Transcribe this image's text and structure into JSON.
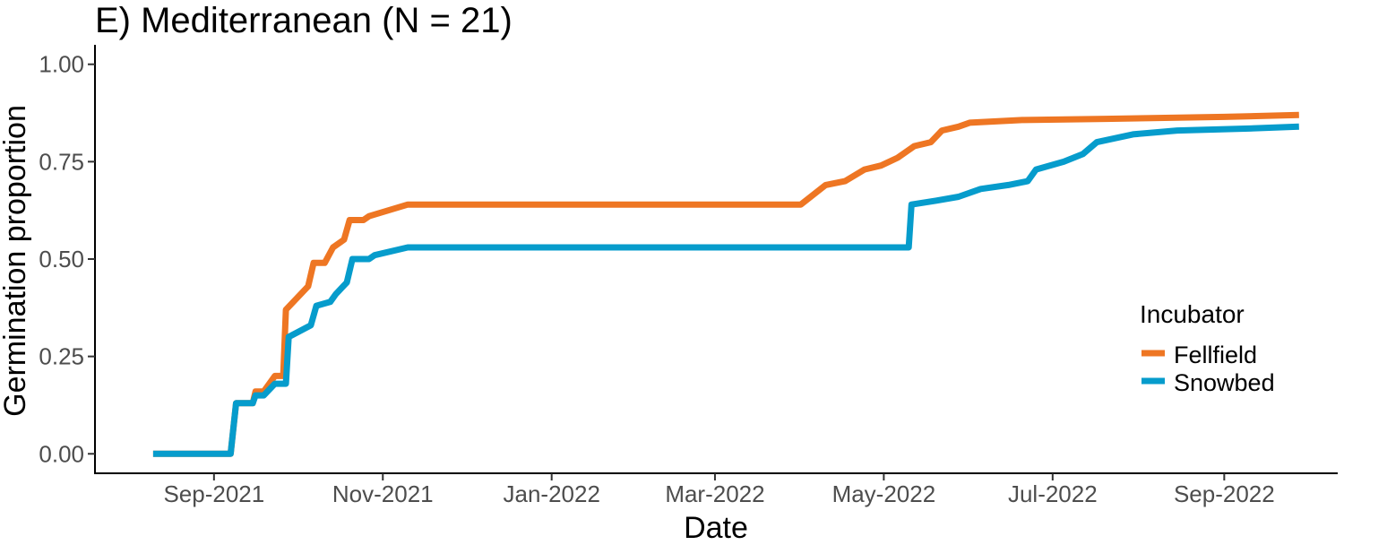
{
  "chart_data": {
    "type": "line",
    "title": "E) Mediterranean (N = 21)",
    "xlabel": "Date",
    "ylabel": "Germination proportion",
    "xlim": [
      "2021-07-20",
      "2022-10-12"
    ],
    "ylim": [
      -0.05,
      1.05
    ],
    "x_ticks": [
      {
        "date": "2021-09-01",
        "label": "Sep-2021"
      },
      {
        "date": "2021-11-01",
        "label": "Nov-2021"
      },
      {
        "date": "2022-01-01",
        "label": "Jan-2022"
      },
      {
        "date": "2022-03-01",
        "label": "Mar-2022"
      },
      {
        "date": "2022-05-01",
        "label": "May-2022"
      },
      {
        "date": "2022-07-01",
        "label": "Jul-2022"
      },
      {
        "date": "2022-09-01",
        "label": "Sep-2022"
      }
    ],
    "y_ticks": [
      {
        "value": 0,
        "label": "0.00"
      },
      {
        "value": 0.25,
        "label": "0.25"
      },
      {
        "value": 0.5,
        "label": "0.50"
      },
      {
        "value": 0.75,
        "label": "0.75"
      },
      {
        "value": 1,
        "label": "1.00"
      }
    ],
    "grid": false,
    "legend": {
      "title": "Incubator",
      "position": "right"
    },
    "series": [
      {
        "name": "Fellfield",
        "color": "#ee7623",
        "points": [
          [
            "2021-08-10",
            0.0
          ],
          [
            "2021-09-07",
            0.0
          ],
          [
            "2021-09-09",
            0.13
          ],
          [
            "2021-09-15",
            0.13
          ],
          [
            "2021-09-16",
            0.16
          ],
          [
            "2021-09-19",
            0.16
          ],
          [
            "2021-09-23",
            0.2
          ],
          [
            "2021-09-26",
            0.2
          ],
          [
            "2021-09-27",
            0.37
          ],
          [
            "2021-10-05",
            0.43
          ],
          [
            "2021-10-07",
            0.49
          ],
          [
            "2021-10-11",
            0.49
          ],
          [
            "2021-10-14",
            0.53
          ],
          [
            "2021-10-18",
            0.55
          ],
          [
            "2021-10-20",
            0.6
          ],
          [
            "2021-10-25",
            0.6
          ],
          [
            "2021-10-27",
            0.61
          ],
          [
            "2021-11-10",
            0.64
          ],
          [
            "2022-04-01",
            0.64
          ],
          [
            "2022-04-10",
            0.69
          ],
          [
            "2022-04-17",
            0.7
          ],
          [
            "2022-04-24",
            0.73
          ],
          [
            "2022-04-30",
            0.74
          ],
          [
            "2022-05-06",
            0.76
          ],
          [
            "2022-05-12",
            0.79
          ],
          [
            "2022-05-18",
            0.8
          ],
          [
            "2022-05-22",
            0.83
          ],
          [
            "2022-05-28",
            0.84
          ],
          [
            "2022-06-01",
            0.85
          ],
          [
            "2022-06-20",
            0.857
          ],
          [
            "2022-07-20",
            0.86
          ],
          [
            "2022-09-01",
            0.865
          ],
          [
            "2022-09-28",
            0.87
          ]
        ]
      },
      {
        "name": "Snowbed",
        "color": "#069ccc",
        "points": [
          [
            "2021-08-10",
            0.0
          ],
          [
            "2021-09-07",
            0.0
          ],
          [
            "2021-09-09",
            0.13
          ],
          [
            "2021-09-15",
            0.13
          ],
          [
            "2021-09-16",
            0.15
          ],
          [
            "2021-09-19",
            0.15
          ],
          [
            "2021-09-23",
            0.18
          ],
          [
            "2021-09-27",
            0.18
          ],
          [
            "2021-09-28",
            0.3
          ],
          [
            "2021-10-06",
            0.33
          ],
          [
            "2021-10-08",
            0.38
          ],
          [
            "2021-10-13",
            0.39
          ],
          [
            "2021-10-15",
            0.41
          ],
          [
            "2021-10-19",
            0.44
          ],
          [
            "2021-10-21",
            0.5
          ],
          [
            "2021-10-27",
            0.5
          ],
          [
            "2021-10-29",
            0.51
          ],
          [
            "2021-11-10",
            0.53
          ],
          [
            "2022-05-10",
            0.53
          ],
          [
            "2022-05-11",
            0.64
          ],
          [
            "2022-05-20",
            0.65
          ],
          [
            "2022-05-28",
            0.66
          ],
          [
            "2022-06-05",
            0.68
          ],
          [
            "2022-06-15",
            0.69
          ],
          [
            "2022-06-22",
            0.7
          ],
          [
            "2022-06-25",
            0.73
          ],
          [
            "2022-07-05",
            0.75
          ],
          [
            "2022-07-12",
            0.77
          ],
          [
            "2022-07-17",
            0.8
          ],
          [
            "2022-07-30",
            0.82
          ],
          [
            "2022-08-15",
            0.83
          ],
          [
            "2022-09-10",
            0.835
          ],
          [
            "2022-09-28",
            0.84
          ]
        ]
      }
    ]
  }
}
